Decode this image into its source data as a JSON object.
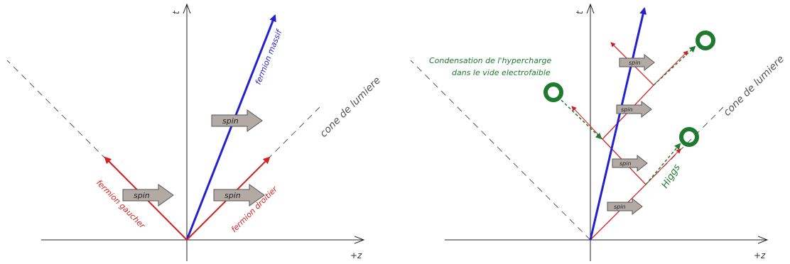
{
  "left_panel": {
    "t_axis": "t",
    "z_axis": "+z",
    "light_cone": "cone de lumiere",
    "massive_fermion": "fermion massif",
    "left_fermion": "fermion gaucher",
    "right_fermion": "fermion droitier",
    "spin_labels": [
      "spin",
      "spin",
      "spin"
    ]
  },
  "right_panel": {
    "t_axis": "t",
    "z_axis": "+z",
    "light_cone": "cone de lumiere",
    "condensation_line1": "Condensation de l'hypercharge",
    "condensation_line2": "dans le vide electrofaible",
    "higgs": "Higgs",
    "spin_labels": [
      "spin",
      "spin",
      "spin",
      "spin"
    ]
  },
  "colors": {
    "massive": "#2222cc",
    "chiral": "#d42020",
    "higgs": "#1e7a2e",
    "cone": "#555555",
    "axis": "#222222",
    "spin_fill": "#b3aaa6"
  }
}
